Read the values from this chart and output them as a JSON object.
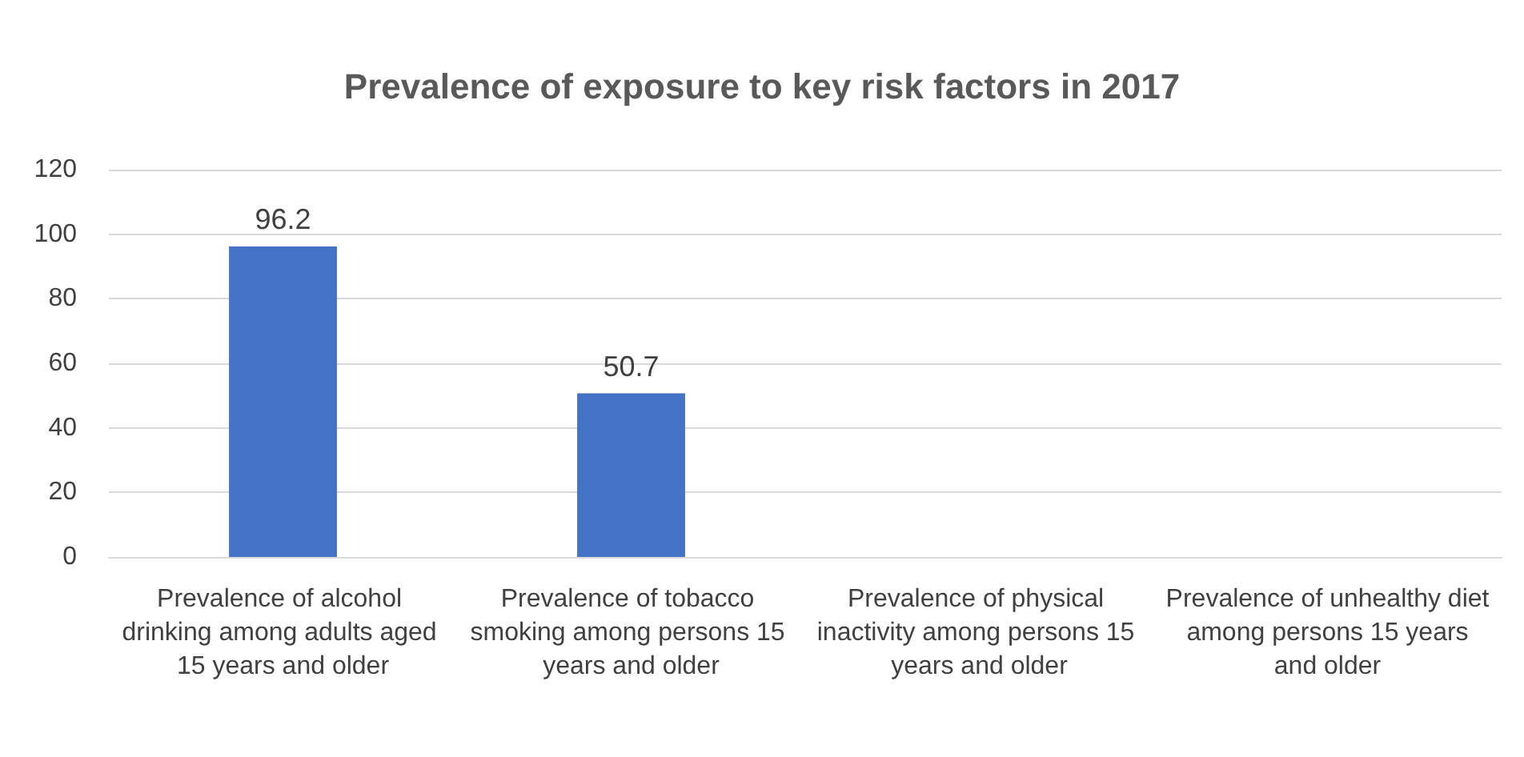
{
  "chart_data": {
    "type": "bar",
    "title": "Prevalence of exposure to key risk factors in 2017",
    "categories": [
      "Prevalence of alcohol drinking among adults aged 15 years and older",
      "Prevalence of tobacco smoking among persons 15 years and older",
      "Prevalence of physical inactivity among persons 15 years and older",
      "Prevalence of unhealthy diet among persons 15 years and older"
    ],
    "values": [
      96.2,
      50.7,
      null,
      null
    ],
    "color": "#4472c4",
    "ylim": [
      0,
      120
    ],
    "yticks": [
      0,
      20,
      40,
      60,
      80,
      100,
      120
    ],
    "grid": "y",
    "data_labels": true
  }
}
